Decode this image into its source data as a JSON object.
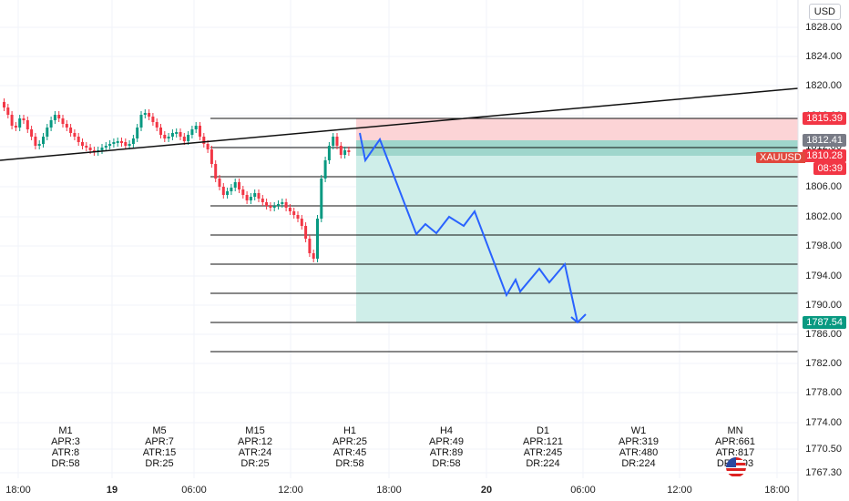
{
  "currency": "USD",
  "symbol": "XAUUSD",
  "countdown": "08:39",
  "price_axis": {
    "ticks": [
      "1828.00",
      "1824.00",
      "1820.00",
      "1816.00",
      "1812.00",
      "1806.00",
      "1802.00",
      "1798.00",
      "1794.00",
      "1790.00",
      "1786.00",
      "1782.00",
      "1778.00",
      "1774.00",
      "1770.50",
      "1767.30"
    ],
    "tick_values": [
      1828,
      1824,
      1820,
      1816,
      1812,
      1806,
      1802,
      1798,
      1794,
      1790,
      1786,
      1782,
      1778,
      1774,
      1770.5,
      1767.3
    ],
    "tags": [
      {
        "label": "1815.39",
        "value": 1815.39,
        "color": "#f23645"
      },
      {
        "label": "1812.41",
        "value": 1812.41,
        "color": "#787b86"
      },
      {
        "label": "1810.28",
        "value": 1810.28,
        "color": "#f23645"
      },
      {
        "label": "1787.54",
        "value": 1787.54,
        "color": "#089981"
      }
    ]
  },
  "time_axis": [
    "18:00",
    "19",
    "06:00",
    "12:00",
    "18:00",
    "20",
    "06:00",
    "12:00",
    "18:00"
  ],
  "stats": [
    {
      "tf": "M1",
      "apr": "APR:3",
      "atr": "ATR:8",
      "dr": "DR:58"
    },
    {
      "tf": "M5",
      "apr": "APR:7",
      "atr": "ATR:15",
      "dr": "DR:25"
    },
    {
      "tf": "M15",
      "apr": "APR:12",
      "atr": "ATR:24",
      "dr": "DR:25"
    },
    {
      "tf": "H1",
      "apr": "APR:25",
      "atr": "ATR:45",
      "dr": "DR:58"
    },
    {
      "tf": "H4",
      "apr": "APR:49",
      "atr": "ATR:89",
      "dr": "DR:58"
    },
    {
      "tf": "D1",
      "apr": "APR:121",
      "atr": "ATR:245",
      "dr": "DR:224"
    },
    {
      "tf": "W1",
      "apr": "APR:319",
      "atr": "ATR:480",
      "dr": "DR:224"
    },
    {
      "tf": "MN",
      "apr": "APR:661",
      "atr": "ATR:817",
      "dr": "DR:4.93"
    }
  ],
  "colors": {
    "up": "#089981",
    "down": "#f23645",
    "stop_zone": "#fcd4d6",
    "target_zone": "#cfeee9",
    "projection": "#2962ff"
  },
  "icons": [
    "us-flag-icon"
  ]
}
